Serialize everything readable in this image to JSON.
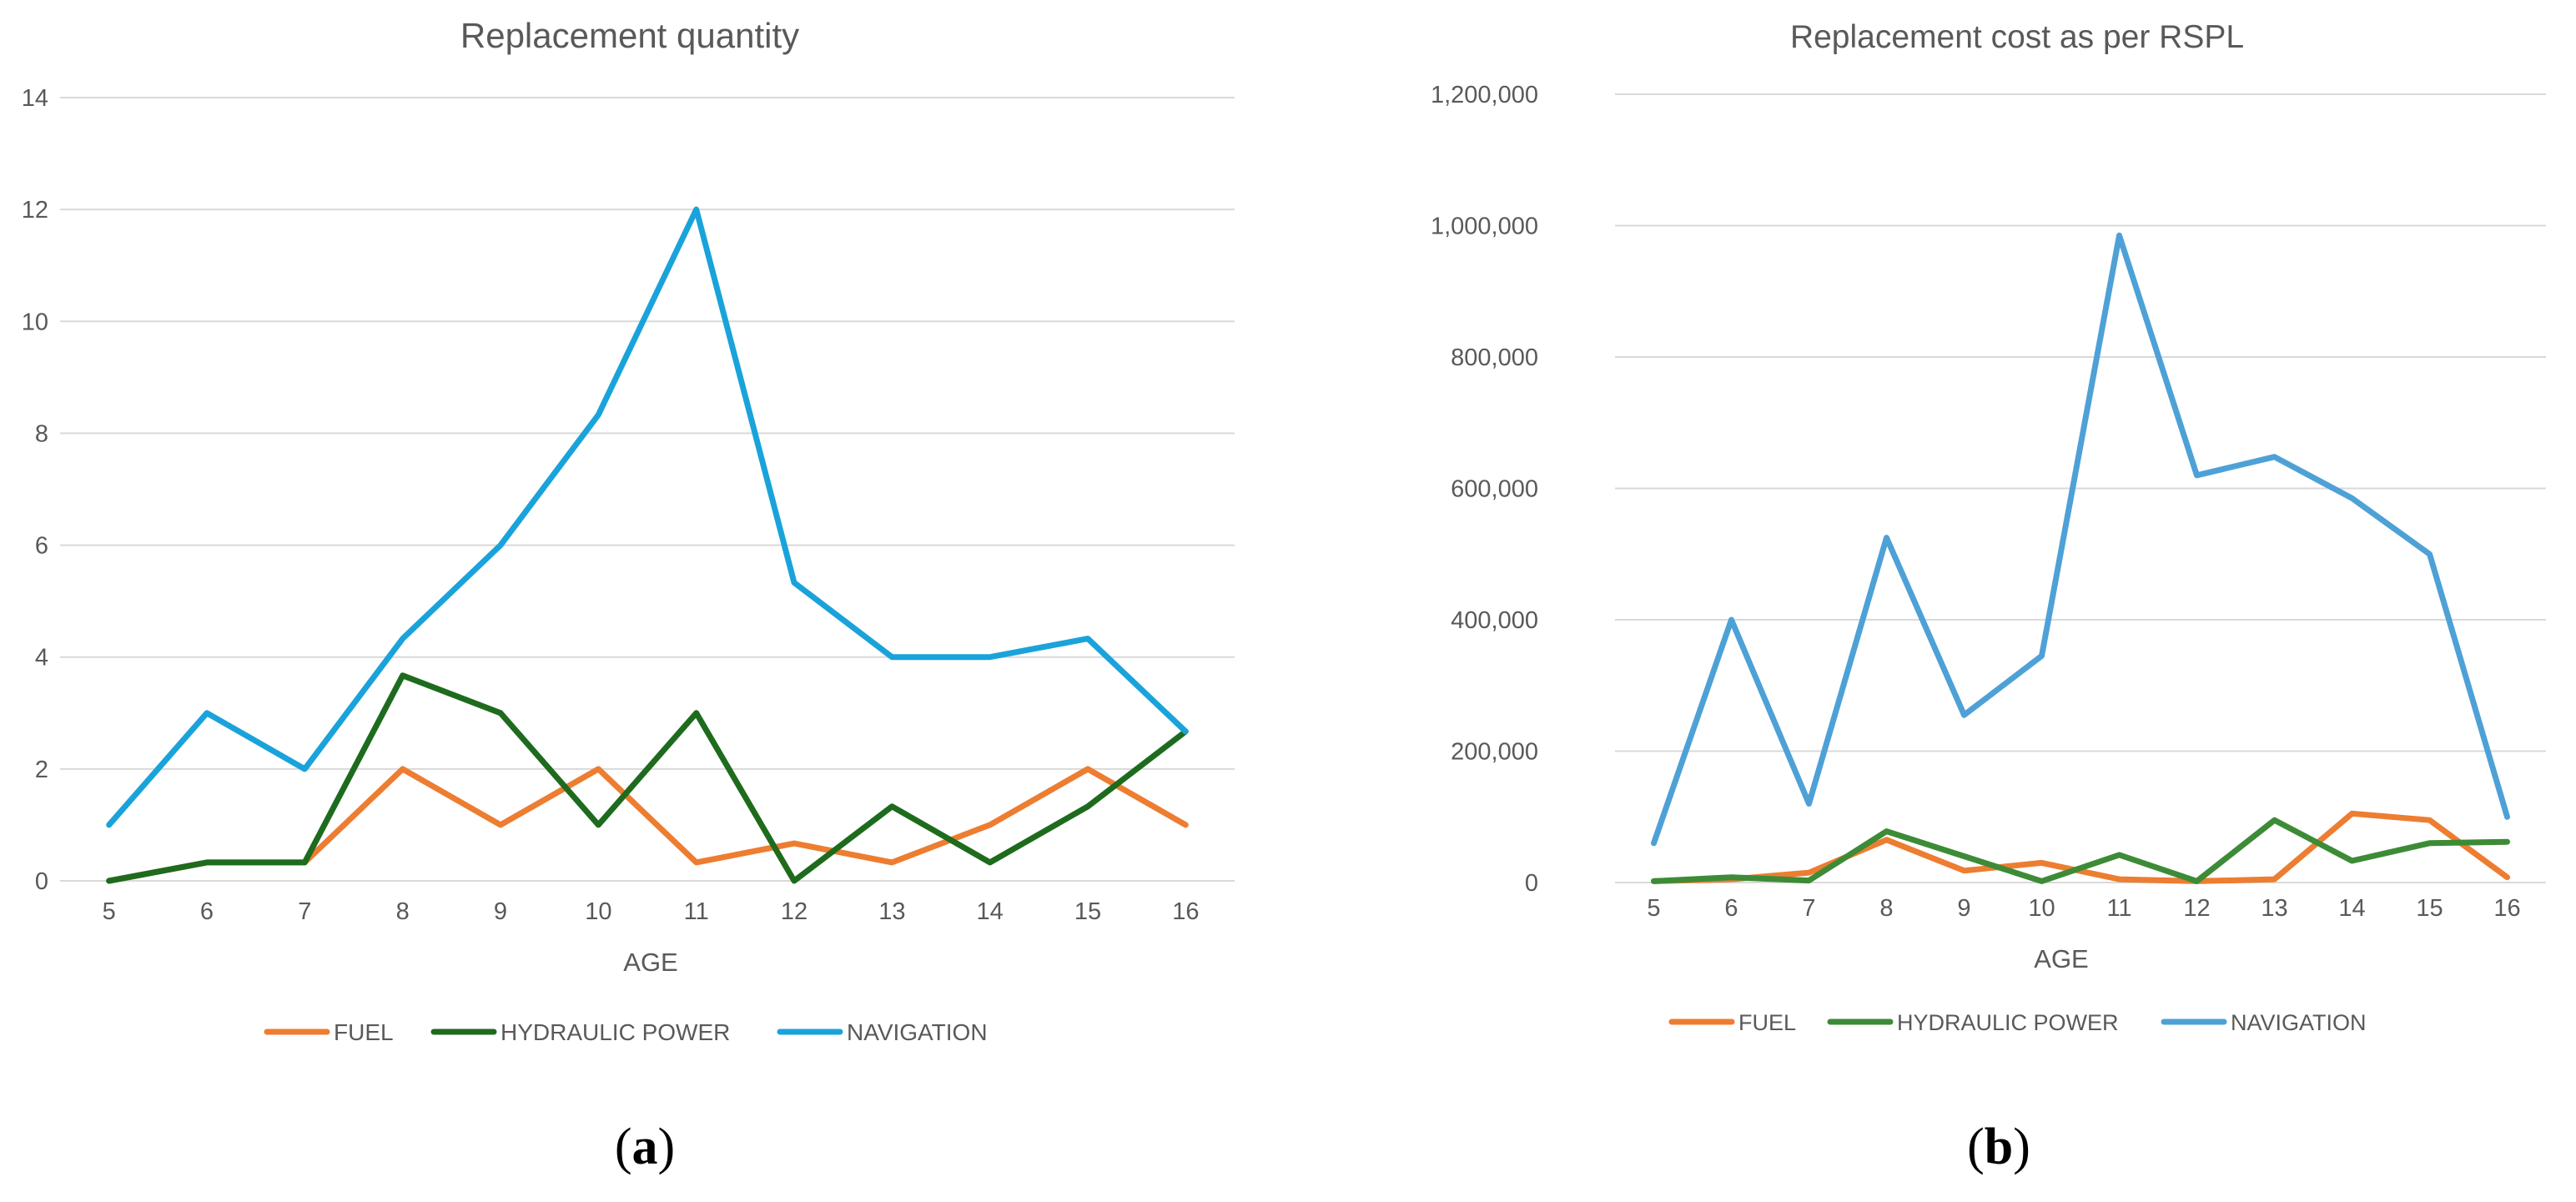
{
  "chart_data": [
    {
      "type": "line",
      "title": "Replacement quantity",
      "xlabel": "AGE",
      "ylabel": "",
      "categories": [
        "5",
        "6",
        "7",
        "8",
        "9",
        "10",
        "11",
        "12",
        "13",
        "14",
        "15",
        "16"
      ],
      "ylim": [
        0,
        14
      ],
      "yticks": [
        "0",
        "2",
        "4",
        "6",
        "8",
        "10",
        "12",
        "14"
      ],
      "grid": true,
      "legend_position": "bottom",
      "panel_label": {
        "open": "(",
        "letter": "a",
        "close": ")"
      },
      "series": [
        {
          "name": "FUEL",
          "color": "#ED7D31",
          "values": [
            0,
            0.33,
            0.33,
            2,
            1,
            2,
            0.33,
            0.67,
            0.33,
            1,
            2,
            1
          ]
        },
        {
          "name": "HYDRAULIC POWER",
          "color": "#1E6B1E",
          "values": [
            0,
            0.33,
            0.33,
            3.67,
            3,
            1,
            3,
            0,
            1.33,
            0.33,
            1.33,
            2.67
          ]
        },
        {
          "name": "NAVIGATION",
          "color": "#1AA3DB",
          "values": [
            1,
            3,
            2,
            4.33,
            6,
            8.33,
            12,
            5.33,
            4,
            4,
            4.33,
            2.67
          ]
        }
      ]
    },
    {
      "type": "line",
      "title": "Replacement cost as per RSPL",
      "xlabel": "AGE",
      "ylabel": "",
      "categories": [
        "5",
        "6",
        "7",
        "8",
        "9",
        "10",
        "11",
        "12",
        "13",
        "14",
        "15",
        "16"
      ],
      "ylim": [
        0,
        1200000
      ],
      "yticks": [
        "0",
        "200,000",
        "400,000",
        "600,000",
        "800,000",
        "1,000,000",
        "1,200,000"
      ],
      "grid": true,
      "legend_position": "bottom",
      "panel_label": {
        "open": "(",
        "letter": "b",
        "close": ")"
      },
      "series": [
        {
          "name": "FUEL",
          "color": "#ED7D31",
          "values": [
            2000,
            5000,
            15000,
            65000,
            18000,
            30000,
            5000,
            2000,
            5000,
            105000,
            95000,
            8000
          ]
        },
        {
          "name": "HYDRAULIC POWER",
          "color": "#3D8B37",
          "values": [
            2000,
            8000,
            3000,
            78000,
            40000,
            2000,
            42000,
            2000,
            95000,
            33000,
            60000,
            62000
          ]
        },
        {
          "name": "NAVIGATION",
          "color": "#4EA1D6",
          "values": [
            60000,
            400000,
            120000,
            525000,
            255000,
            345000,
            985000,
            620000,
            648000,
            585000,
            500000,
            100000
          ]
        }
      ]
    }
  ]
}
